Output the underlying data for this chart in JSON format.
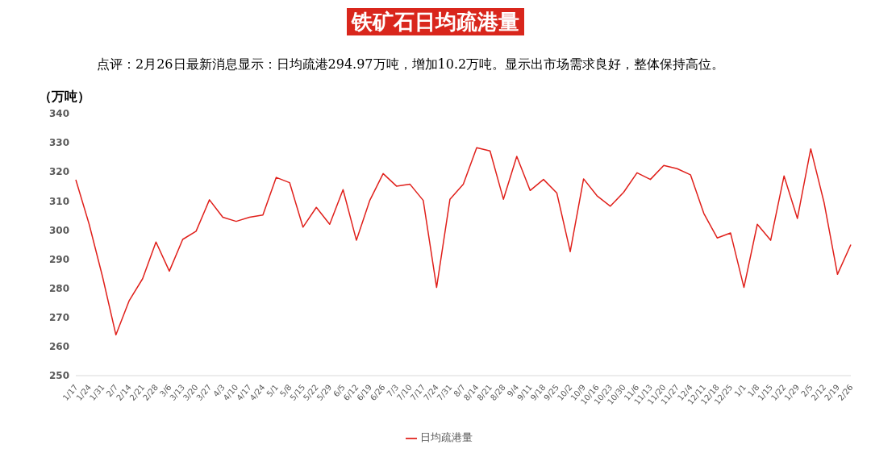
{
  "chart_data": {
    "type": "line",
    "title": "铁矿石日均疏港量",
    "annotations": [
      "点评：2月26日最新消息显示：日均疏港294.97万吨，增加10.2万吨。显示出市场需求良好，整体保持高位。"
    ],
    "ylabel": "（万吨）",
    "categories": [
      "1/17",
      "1/24",
      "1/31",
      "2/7",
      "2/14",
      "2/21",
      "2/28",
      "3/6",
      "3/13",
      "3/20",
      "3/27",
      "4/3",
      "4/10",
      "4/17",
      "4/24",
      "5/1",
      "5/8",
      "5/15",
      "5/22",
      "5/29",
      "6/5",
      "6/12",
      "6/19",
      "6/26",
      "7/3",
      "7/10",
      "7/17",
      "7/24",
      "7/31",
      "8/7",
      "8/14",
      "8/21",
      "8/28",
      "9/4",
      "9/11",
      "9/18",
      "9/25",
      "10/2",
      "10/9",
      "10/16",
      "10/23",
      "10/30",
      "11/6",
      "11/13",
      "11/20",
      "11/27",
      "12/4",
      "12/11",
      "12/18",
      "12/25",
      "1/1",
      "1/8",
      "1/15",
      "1/22",
      "1/29",
      "2/5",
      "2/12",
      "2/19",
      "2/26"
    ],
    "series": [
      {
        "name": "日均疏港量",
        "color": "#e0201b",
        "values": [
          317.3,
          302,
          284,
          264,
          275.8,
          283.3,
          295.9,
          285.9,
          296.8,
          299.6,
          310.4,
          304.4,
          303,
          304.4,
          305.2,
          318.1,
          316.3,
          301,
          307.8,
          302,
          313.9,
          296.5,
          310.2,
          319.4,
          315.1,
          315.8,
          310.2,
          280.3,
          310.6,
          315.8,
          328.3,
          327.2,
          310.6,
          325.3,
          313.6,
          317.4,
          312.7,
          292.6,
          317.6,
          311.8,
          308.2,
          313,
          319.7,
          317.4,
          322.2,
          321.1,
          319,
          305.7,
          297.3,
          299,
          280.3,
          302,
          296.5,
          318.6,
          304,
          327.9,
          309.4,
          284.8,
          295
        ]
      }
    ],
    "ylim": [
      250,
      340
    ],
    "yticks": [
      250,
      260,
      270,
      280,
      290,
      300,
      310,
      320,
      330,
      340
    ],
    "grid": false,
    "legend": "bottom",
    "marker": "none",
    "line_style": "solid"
  }
}
